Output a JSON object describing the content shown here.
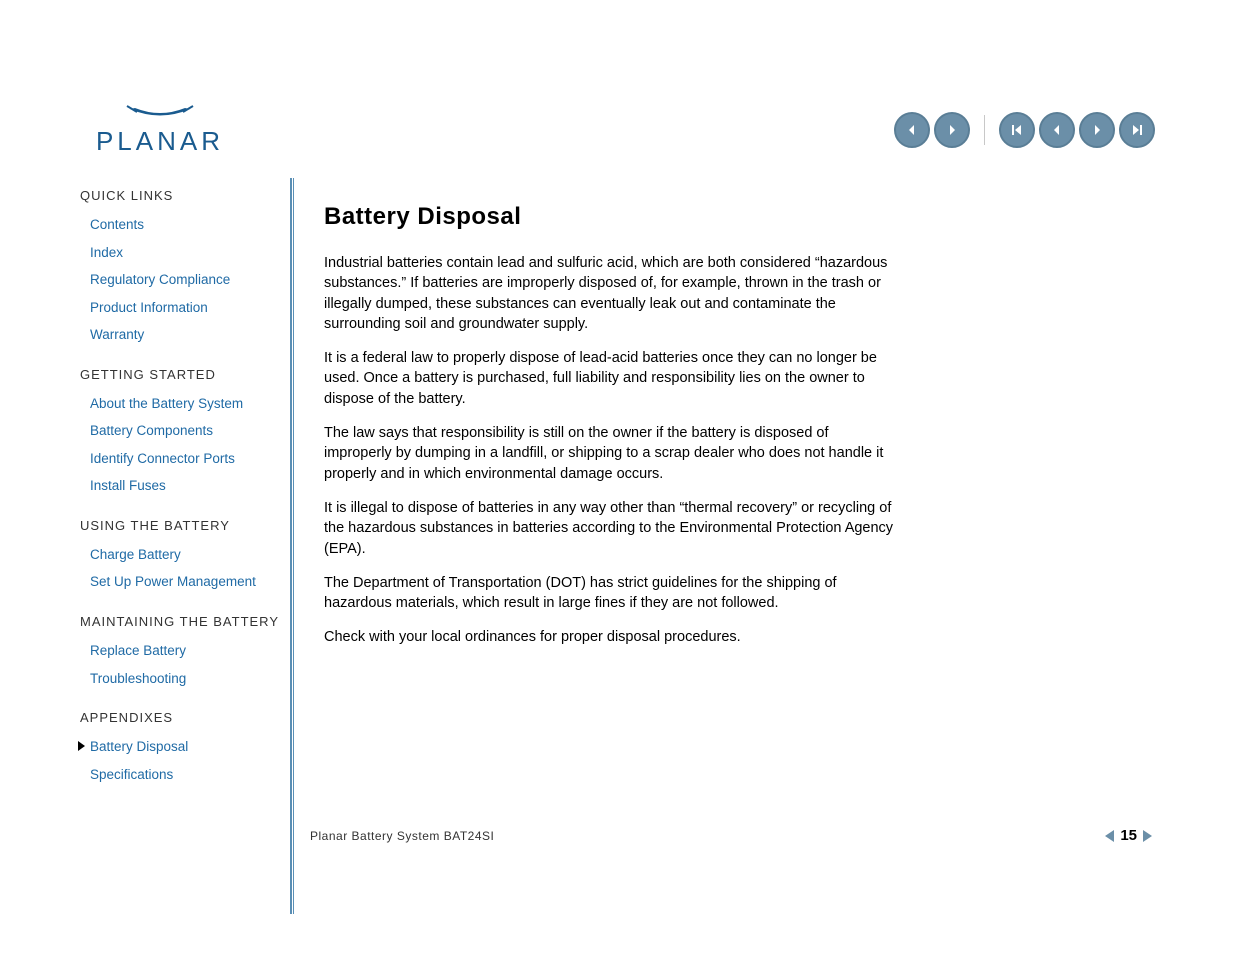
{
  "brand": "PLANAR",
  "colors": {
    "link": "#1f6aa5",
    "nav_button": "#6b8fa8",
    "nav_button_border": "#5a7e96",
    "divider": "#5a8fb5",
    "logo": "#1a5b8f",
    "page_arrow": "#6b8fa8"
  },
  "sidebar": {
    "sections": [
      {
        "header": "QUICK LINKS",
        "items": [
          {
            "label": "Contents",
            "current": false
          },
          {
            "label": "Index",
            "current": false
          },
          {
            "label": "Regulatory Compliance",
            "current": false
          },
          {
            "label": "Product Information",
            "current": false
          },
          {
            "label": "Warranty",
            "current": false
          }
        ]
      },
      {
        "header": "GETTING STARTED",
        "items": [
          {
            "label": "About the Battery System",
            "current": false
          },
          {
            "label": "Battery Components",
            "current": false
          },
          {
            "label": "Identify Connector Ports",
            "current": false
          },
          {
            "label": "Install Fuses",
            "current": false
          }
        ]
      },
      {
        "header": "USING THE BATTERY",
        "items": [
          {
            "label": "Charge Battery",
            "current": false
          },
          {
            "label": "Set Up Power Management",
            "current": false
          }
        ]
      },
      {
        "header": "MAINTAINING THE BATTERY",
        "items": [
          {
            "label": "Replace Battery",
            "current": false
          },
          {
            "label": "Troubleshooting",
            "current": false
          }
        ]
      },
      {
        "header": "APPENDIXES",
        "items": [
          {
            "label": "Battery Disposal",
            "current": true
          },
          {
            "label": "Specifications",
            "current": false
          }
        ]
      }
    ]
  },
  "content": {
    "title": "Battery Disposal",
    "paragraphs": [
      "Industrial batteries contain lead and sulfuric acid, which are both considered “hazardous substances.” If batteries are improperly disposed of, for example, thrown in the trash or illegally dumped, these substances can eventually leak out and contaminate the surrounding soil and groundwater supply.",
      "It is a federal law to properly dispose of lead-acid batteries once they can no longer be used. Once a battery is purchased, full liability and responsibility lies on the owner to dispose of the battery.",
      "The law says that responsibility is still on the owner if the battery is disposed of improperly by dumping in a landfill, or shipping to a scrap dealer who does not handle it properly and in which environmental damage occurs.",
      "It is illegal to dispose of batteries in any way other than “thermal recovery” or recycling of the hazardous substances in batteries according to the Environmental Protection Agency (EPA).",
      "The Department of Transportation (DOT) has strict guidelines for the shipping of hazardous materials, which result in large fines if they are not followed.",
      "Check with your local ordinances for proper disposal procedures."
    ]
  },
  "footer": {
    "text": "Planar Battery System BAT24SI",
    "page_number": "15"
  }
}
